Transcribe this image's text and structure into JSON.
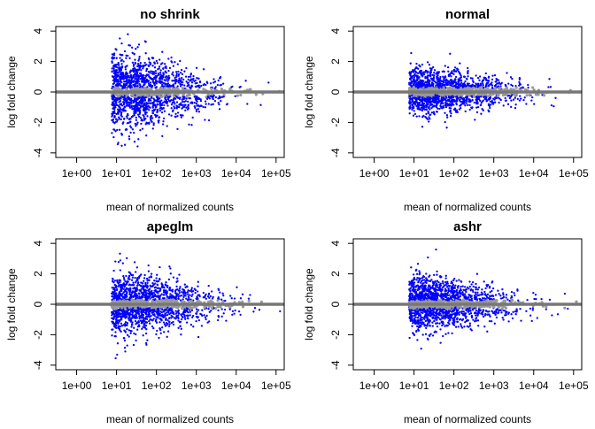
{
  "colors": {
    "significant": "#0000ff",
    "non_significant": "#999999",
    "zero_line": "#777777",
    "frame": "#000000"
  },
  "chart_data": [
    {
      "type": "scatter",
      "title": "no shrink",
      "xlabel": "mean of normalized counts",
      "ylabel": "log fold change",
      "x_scale": "log10",
      "xlim": [
        0.3,
        160000
      ],
      "ylim": [
        -4.3,
        4.3
      ],
      "x_ticks": [
        1,
        10,
        100,
        1000,
        10000,
        100000
      ],
      "x_tick_labels": [
        "1e+00",
        "1e+01",
        "1e+02",
        "1e+03",
        "1e+04",
        "1e+05"
      ],
      "y_ticks": [
        -4,
        -2,
        0,
        2,
        4
      ],
      "y_tick_labels": [
        "-4",
        "-2",
        "0",
        "2",
        "4"
      ],
      "horizontal_line": 0,
      "spread": {
        "low_counts": 2.4,
        "high_counts": 0.8,
        "max_abs": 3.9
      },
      "series": [
        {
          "group": "significant",
          "color": "#0000ff"
        },
        {
          "group": "not significant",
          "color": "#999999"
        }
      ]
    },
    {
      "type": "scatter",
      "title": "normal",
      "xlabel": "mean of normalized counts",
      "ylabel": "log fold change",
      "x_scale": "log10",
      "xlim": [
        0.3,
        160000
      ],
      "ylim": [
        -4.3,
        4.3
      ],
      "x_ticks": [
        1,
        10,
        100,
        1000,
        10000,
        100000
      ],
      "x_tick_labels": [
        "1e+00",
        "1e+01",
        "1e+02",
        "1e+03",
        "1e+04",
        "1e+05"
      ],
      "y_ticks": [
        -4,
        -2,
        0,
        2,
        4
      ],
      "y_tick_labels": [
        "-4",
        "-2",
        "0",
        "2",
        "4"
      ],
      "horizontal_line": 0,
      "spread": {
        "low_counts": 1.4,
        "high_counts": 0.8,
        "max_abs": 3.2
      },
      "series": [
        {
          "group": "significant",
          "color": "#0000ff"
        },
        {
          "group": "not significant",
          "color": "#999999"
        }
      ]
    },
    {
      "type": "scatter",
      "title": "apeglm",
      "xlabel": "mean of normalized counts",
      "ylabel": "log fold change",
      "x_scale": "log10",
      "xlim": [
        0.3,
        160000
      ],
      "ylim": [
        -4.3,
        4.3
      ],
      "x_ticks": [
        1,
        10,
        100,
        1000,
        10000,
        100000
      ],
      "x_tick_labels": [
        "1e+00",
        "1e+01",
        "1e+02",
        "1e+03",
        "1e+04",
        "1e+05"
      ],
      "y_ticks": [
        -4,
        -2,
        0,
        2,
        4
      ],
      "y_tick_labels": [
        "-4",
        "-2",
        "0",
        "2",
        "4"
      ],
      "horizontal_line": 0,
      "spread": {
        "low_counts": 1.9,
        "high_counts": 0.8,
        "max_abs": 3.8
      },
      "series": [
        {
          "group": "significant",
          "color": "#0000ff"
        },
        {
          "group": "not significant",
          "color": "#999999"
        }
      ]
    },
    {
      "type": "scatter",
      "title": "ashr",
      "xlabel": "mean of normalized counts",
      "ylabel": "log fold change",
      "x_scale": "log10",
      "xlim": [
        0.3,
        160000
      ],
      "ylim": [
        -4.3,
        4.3
      ],
      "x_ticks": [
        1,
        10,
        100,
        1000,
        10000,
        100000
      ],
      "x_tick_labels": [
        "1e+00",
        "1e+01",
        "1e+02",
        "1e+03",
        "1e+04",
        "1e+05"
      ],
      "y_ticks": [
        -4,
        -2,
        0,
        2,
        4
      ],
      "y_tick_labels": [
        "-4",
        "-2",
        "0",
        "2",
        "4"
      ],
      "horizontal_line": 0,
      "spread": {
        "low_counts": 1.7,
        "high_counts": 0.8,
        "max_abs": 3.7
      },
      "series": [
        {
          "group": "significant",
          "color": "#0000ff"
        },
        {
          "group": "not significant",
          "color": "#999999"
        }
      ]
    }
  ]
}
